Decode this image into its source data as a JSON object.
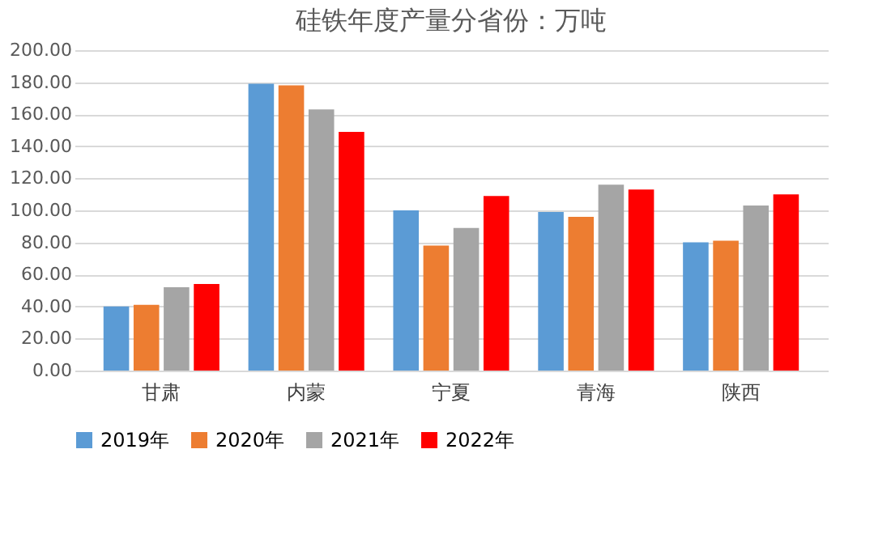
{
  "chart_data": {
    "type": "bar",
    "title": "硅铁年度产量分省份：万吨",
    "categories": [
      "甘肃",
      "内蒙",
      "宁夏",
      "青海",
      "陕西"
    ],
    "series": [
      {
        "name": "2019年",
        "color": "#5b9bd5",
        "values": [
          40,
          179,
          100,
          99,
          80
        ]
      },
      {
        "name": "2020年",
        "color": "#ed7d31",
        "values": [
          41,
          178,
          78,
          96,
          81
        ]
      },
      {
        "name": "2021年",
        "color": "#a5a5a5",
        "values": [
          52,
          163,
          89,
          116,
          103
        ]
      },
      {
        "name": "2022年",
        "color": "#ff0000",
        "values": [
          54,
          149,
          109,
          113,
          110
        ]
      }
    ],
    "ylim": [
      0,
      200
    ],
    "yticks": [
      {
        "value": 0,
        "label": "0.00"
      },
      {
        "value": 20,
        "label": "20.00"
      },
      {
        "value": 40,
        "label": "40.00"
      },
      {
        "value": 60,
        "label": "60.00"
      },
      {
        "value": 80,
        "label": "80.00"
      },
      {
        "value": 100,
        "label": "100.00"
      },
      {
        "value": 120,
        "label": "120.00"
      },
      {
        "value": 140,
        "label": "140.00"
      },
      {
        "value": 160,
        "label": "160.00"
      },
      {
        "value": 180,
        "label": "180.00"
      },
      {
        "value": 200,
        "label": "200.00"
      }
    ],
    "grid": "y",
    "legend": "bottom"
  }
}
